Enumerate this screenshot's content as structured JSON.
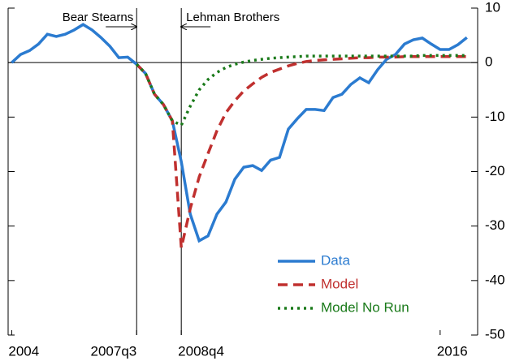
{
  "chart_data": {
    "type": "line",
    "x": [
      2004,
      2004.25,
      2004.5,
      2004.75,
      2005,
      2005.25,
      2005.5,
      2005.75,
      2006,
      2006.25,
      2006.5,
      2006.75,
      2007,
      2007.25,
      2007.5,
      2007.75,
      2008,
      2008.25,
      2008.5,
      2008.75,
      2009,
      2009.25,
      2009.5,
      2009.75,
      2010,
      2010.25,
      2010.5,
      2010.75,
      2011,
      2011.25,
      2011.5,
      2011.75,
      2012,
      2012.25,
      2012.5,
      2012.75,
      2013,
      2013.25,
      2013.5,
      2013.75,
      2014,
      2014.25,
      2014.5,
      2014.75,
      2015,
      2015.25,
      2015.5,
      2015.75,
      2016,
      2016.25,
      2016.5,
      2016.75
    ],
    "series": [
      {
        "name": "Data",
        "color": "#2b7bd0",
        "style": "solid",
        "values": [
          0,
          1.5,
          2.2,
          3.4,
          5.2,
          4.8,
          5.2,
          6,
          7,
          6,
          4.6,
          3,
          0.9,
          1,
          -0.3,
          -2,
          -5.8,
          -7.7,
          -10.7,
          -18.2,
          -27.8,
          -32.7,
          -31.8,
          -27.8,
          -25.6,
          -21.4,
          -19.2,
          -18.9,
          -19.8,
          -17.9,
          -17.4,
          -12.2,
          -10.3,
          -8.6,
          -8.6,
          -8.8,
          -6.4,
          -5.8,
          -4,
          -2.8,
          -3.7,
          -1.3,
          0.6,
          1.5,
          3.4,
          4.2,
          4.5,
          3.4,
          2.4,
          2.4,
          3.3,
          4.6
        ]
      },
      {
        "name": "Model",
        "color": "#c0302f",
        "style": "dashed",
        "values": [
          null,
          null,
          null,
          null,
          null,
          null,
          null,
          null,
          null,
          null,
          null,
          null,
          null,
          null,
          -0.3,
          -2,
          -5.8,
          -7.7,
          -10.7,
          -34,
          -26.8,
          -21,
          -16.7,
          -12.5,
          -9.2,
          -7,
          -5.2,
          -3.9,
          -2.7,
          -1.8,
          -1.2,
          -0.6,
          -0.15,
          0.2,
          0.4,
          0.5,
          0.6,
          0.7,
          0.8,
          0.9,
          0.9,
          1,
          1,
          1,
          1.1,
          1.1,
          1.1,
          1.1,
          1.1,
          1.1,
          1.1,
          1.1
        ]
      },
      {
        "name": "Model No Run",
        "color": "#1a7a1a",
        "style": "dotted",
        "values": [
          null,
          null,
          null,
          null,
          null,
          null,
          null,
          null,
          null,
          null,
          null,
          null,
          null,
          null,
          -0.3,
          -2,
          -5.8,
          -7.7,
          -10.7,
          -11.5,
          -8,
          -5,
          -3.1,
          -1.8,
          -0.9,
          -0.3,
          0.1,
          0.4,
          0.6,
          0.8,
          0.9,
          1,
          1.1,
          1.2,
          1.2,
          1.2,
          1.2,
          1.2,
          1.2,
          1.2,
          1.2,
          1.2,
          1.2,
          1.2,
          1.2,
          1.2,
          1.3,
          1.3,
          1.3,
          1.3,
          1.3,
          1.3
        ]
      }
    ],
    "xlim": [
      2003.9,
      2017.05
    ],
    "xticks": [
      {
        "value": 2004,
        "label": "2004"
      },
      {
        "value": 2007.5,
        "label": "2007q3"
      },
      {
        "value": 2008.75,
        "label": "2008q4"
      },
      {
        "value": 2016,
        "label": "2016"
      }
    ],
    "ylim": [
      -50,
      10
    ],
    "yticks": [
      -50,
      -40,
      -30,
      -20,
      -10,
      0,
      10
    ],
    "annotations": [
      {
        "text": "Bear Stearns",
        "x": 2007.5
      },
      {
        "text": "Lehman Brothers",
        "x": 2008.75
      }
    ],
    "legend": "lower right"
  }
}
